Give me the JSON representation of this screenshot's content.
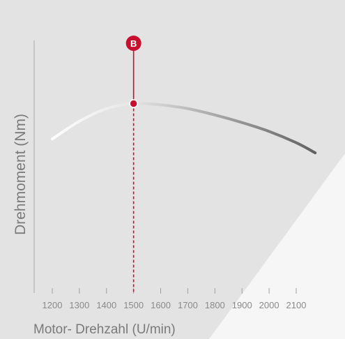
{
  "chart_data": {
    "type": "line",
    "xlabel": "Motor- Drehzahl (U/min)",
    "ylabel": "Drehmoment (Nm)",
    "x_ticks": [
      1200,
      1300,
      1400,
      1500,
      1600,
      1700,
      1800,
      1900,
      2000,
      2100
    ],
    "xlim": [
      1200,
      2100
    ],
    "series": [
      {
        "x": [
          1200,
          1300,
          1400,
          1500,
          1600,
          1700,
          1800,
          1900,
          2000,
          2100,
          2170
        ],
        "y": [
          0.61,
          0.68,
          0.73,
          0.75,
          0.745,
          0.73,
          0.705,
          0.675,
          0.64,
          0.595,
          0.555
        ],
        "color_start": "#ffffff",
        "color_end": "#5f5f5f"
      }
    ],
    "ylim": [
      0,
      1
    ],
    "grid": false,
    "marker": {
      "label": "B",
      "x": 1500,
      "color": "#c8102e"
    }
  },
  "colors": {
    "background": "#e3e3e3",
    "axis": "#a0a0a0",
    "tick_label": "#8a8a8a",
    "axis_label": "#7a7a7a",
    "accent": "#c8102e"
  }
}
